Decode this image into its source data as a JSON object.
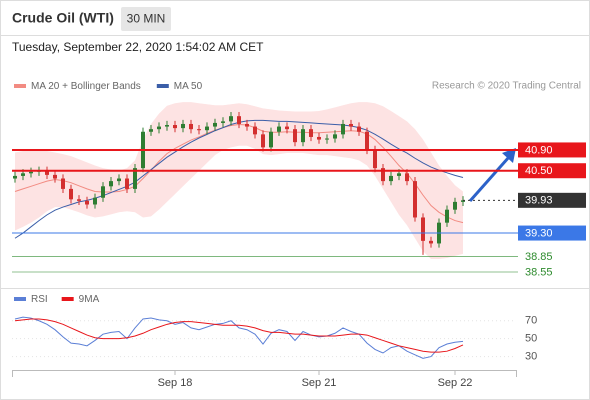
{
  "header": {
    "title": "Crude Oil (WTI)",
    "interval": "30 MIN",
    "timestamp": "Tuesday, September 22, 2020 1:54:02 AM CET"
  },
  "chart_data": [
    {
      "type": "candlestick",
      "credit": "Research © 2020 Trading Central",
      "up_color": "#2e7d32",
      "down_color": "#d32f2f",
      "open": [
        40.35,
        40.4,
        40.45,
        40.48,
        40.5,
        40.42,
        40.35,
        40.15,
        39.95,
        39.92,
        39.85,
        39.98,
        40.2,
        40.3,
        40.35,
        40.15,
        40.55,
        41.25,
        41.3,
        41.35,
        41.38,
        41.32,
        41.4,
        41.3,
        41.28,
        41.35,
        41.42,
        41.45,
        41.55,
        41.4,
        41.35,
        41.2,
        40.95,
        41.25,
        41.35,
        41.3,
        41.05,
        41.3,
        41.15,
        41.1,
        41.12,
        41.2,
        41.4,
        41.35,
        41.25,
        40.9,
        40.55,
        40.3,
        40.4,
        40.45,
        40.3,
        39.6,
        39.15,
        39.1,
        39.5,
        39.75,
        39.9
      ],
      "high": [
        40.48,
        40.53,
        40.56,
        40.58,
        40.58,
        40.5,
        40.43,
        40.23,
        40.03,
        40.0,
        40.06,
        40.28,
        40.38,
        40.43,
        40.43,
        40.63,
        41.33,
        41.38,
        41.43,
        41.46,
        41.46,
        41.48,
        41.48,
        41.38,
        41.43,
        41.5,
        41.53,
        41.63,
        41.63,
        41.48,
        41.43,
        41.28,
        41.33,
        41.43,
        41.43,
        41.38,
        41.38,
        41.38,
        41.23,
        41.2,
        41.28,
        41.48,
        41.48,
        41.43,
        41.33,
        40.98,
        40.63,
        40.48,
        40.53,
        40.53,
        40.38,
        39.68,
        39.23,
        39.58,
        39.83,
        39.98,
        40.01
      ],
      "low": [
        40.27,
        40.32,
        40.37,
        40.4,
        40.34,
        40.27,
        40.07,
        39.87,
        39.84,
        39.77,
        39.77,
        39.9,
        40.12,
        40.22,
        40.07,
        40.07,
        40.47,
        41.17,
        41.22,
        41.27,
        41.24,
        41.24,
        41.22,
        41.2,
        41.2,
        41.27,
        41.34,
        41.37,
        41.32,
        41.27,
        41.12,
        40.87,
        40.87,
        41.17,
        41.22,
        40.97,
        40.97,
        41.07,
        41.02,
        41.02,
        41.04,
        41.12,
        41.27,
        41.17,
        40.82,
        40.47,
        40.22,
        40.22,
        40.32,
        40.22,
        39.52,
        38.88,
        39.02,
        39.02,
        39.42,
        39.67,
        39.82
      ],
      "close": [
        40.4,
        40.45,
        40.48,
        40.5,
        40.42,
        40.35,
        40.15,
        39.95,
        39.92,
        39.85,
        39.98,
        40.2,
        40.3,
        40.35,
        40.15,
        40.55,
        41.25,
        41.3,
        41.35,
        41.38,
        41.32,
        41.4,
        41.3,
        41.28,
        41.35,
        41.42,
        41.45,
        41.55,
        41.4,
        41.35,
        41.2,
        40.95,
        41.25,
        41.35,
        41.3,
        41.05,
        41.3,
        41.15,
        41.1,
        41.12,
        41.2,
        41.4,
        41.35,
        41.25,
        40.9,
        40.55,
        40.3,
        40.4,
        40.45,
        40.3,
        39.6,
        39.15,
        39.1,
        39.5,
        39.75,
        39.9,
        39.93
      ],
      "overlays": [
        {
          "name": "MA 20 + Bollinger Bands",
          "color": "#f28b82",
          "band_color": "#fde3e3",
          "values": [
            40.1,
            40.15,
            40.2,
            40.25,
            40.3,
            40.33,
            40.31,
            40.27,
            40.21,
            40.15,
            40.1,
            40.09,
            40.09,
            40.1,
            40.14,
            40.2,
            40.35,
            40.51,
            40.68,
            40.83,
            40.93,
            41.01,
            41.09,
            41.15,
            41.22,
            41.28,
            41.33,
            41.37,
            41.39,
            41.38,
            41.33,
            41.26,
            41.24,
            41.24,
            41.25,
            41.24,
            41.24,
            41.23,
            41.23,
            41.24,
            41.25,
            41.26,
            41.27,
            41.26,
            41.21,
            41.1,
            40.95,
            40.78,
            40.6,
            40.45,
            40.25,
            40.03,
            39.83,
            39.7,
            39.61,
            39.54,
            39.5
          ],
          "upper": [
            40.85,
            40.88,
            40.9,
            40.9,
            40.88,
            40.85,
            40.82,
            40.78,
            40.72,
            40.66,
            40.6,
            40.55,
            40.52,
            40.5,
            40.55,
            40.7,
            41.1,
            41.4,
            41.6,
            41.75,
            41.8,
            41.82,
            41.82,
            41.8,
            41.78,
            41.76,
            41.76,
            41.78,
            41.8,
            41.78,
            41.74,
            41.7,
            41.68,
            41.66,
            41.65,
            41.64,
            41.64,
            41.64,
            41.65,
            41.68,
            41.72,
            41.76,
            41.8,
            41.82,
            41.82,
            41.8,
            41.74,
            41.65,
            41.55,
            41.45,
            41.3,
            41.1,
            40.85,
            40.6,
            40.4,
            40.22,
            40.1
          ],
          "lower": [
            39.35,
            39.42,
            39.5,
            39.6,
            39.72,
            39.8,
            39.8,
            39.75,
            39.7,
            39.64,
            39.6,
            39.62,
            39.66,
            39.7,
            39.72,
            39.7,
            39.6,
            39.62,
            39.75,
            39.9,
            40.05,
            40.2,
            40.35,
            40.5,
            40.65,
            40.8,
            40.9,
            40.95,
            40.98,
            40.98,
            40.92,
            40.82,
            40.8,
            40.82,
            40.84,
            40.84,
            40.84,
            40.82,
            40.8,
            40.8,
            40.78,
            40.76,
            40.74,
            40.7,
            40.6,
            40.4,
            40.15,
            39.9,
            39.65,
            39.45,
            39.2,
            38.95,
            38.8,
            38.8,
            38.82,
            38.86,
            38.9
          ]
        },
        {
          "name": "MA 50",
          "color": "#3b5ea8",
          "values": [
            39.2,
            39.3,
            39.42,
            39.54,
            39.65,
            39.74,
            39.8,
            39.85,
            39.9,
            39.93,
            39.97,
            40.02,
            40.08,
            40.14,
            40.2,
            40.28,
            40.4,
            40.52,
            40.64,
            40.76,
            40.86,
            40.96,
            41.05,
            41.13,
            41.2,
            41.27,
            41.33,
            41.39,
            41.43,
            41.46,
            41.47,
            41.47,
            41.46,
            41.45,
            41.45,
            41.44,
            41.43,
            41.42,
            41.41,
            41.4,
            41.39,
            41.38,
            41.36,
            41.33,
            41.28,
            41.2,
            41.11,
            41.01,
            40.92,
            40.84,
            40.74,
            40.65,
            40.57,
            40.51,
            40.46,
            40.41,
            40.37
          ]
        }
      ],
      "ylim": [
        38.3,
        41.9
      ],
      "levels": [
        {
          "value": 40.9,
          "label": "40.90",
          "color": "#e8161b",
          "boxed": true
        },
        {
          "value": 40.5,
          "label": "40.50",
          "color": "#e8161b",
          "boxed": true
        },
        {
          "value": 39.93,
          "label": "39.93",
          "color": "#333333",
          "boxed": true,
          "dashed": true
        },
        {
          "value": 39.3,
          "label": "39.30",
          "color": "#3b78e7",
          "boxed": true
        },
        {
          "value": 38.85,
          "label": "38.85",
          "color": "#2e8b2e",
          "boxed": false
        },
        {
          "value": 38.55,
          "label": "38.55",
          "color": "#2e8b2e",
          "boxed": false
        }
      ]
    },
    {
      "type": "line",
      "categories": [
        null,
        null,
        null,
        null,
        null,
        null,
        null,
        null,
        null,
        null,
        null,
        null,
        null,
        null,
        null,
        null,
        null,
        null,
        null,
        null,
        "Sep 18",
        null,
        null,
        null,
        null,
        null,
        null,
        null,
        null,
        null,
        null,
        null,
        null,
        null,
        null,
        null,
        null,
        null,
        "Sep 21",
        null,
        null,
        null,
        null,
        null,
        null,
        null,
        null,
        null,
        null,
        null,
        null,
        null,
        null,
        null,
        null,
        "Sep 22",
        null
      ],
      "series": [
        {
          "name": "RSI",
          "color": "#5b7fd6",
          "values": [
            72,
            74,
            73,
            70,
            66,
            60,
            52,
            45,
            44,
            42,
            48,
            55,
            57,
            58,
            50,
            62,
            72,
            73,
            71,
            70,
            66,
            68,
            62,
            60,
            63,
            66,
            67,
            70,
            62,
            60,
            55,
            44,
            56,
            60,
            58,
            48,
            58,
            54,
            52,
            53,
            56,
            62,
            58,
            55,
            45,
            38,
            34,
            40,
            42,
            36,
            32,
            28,
            30,
            40,
            44,
            46,
            47
          ]
        },
        {
          "name": "9MA",
          "color": "#e8161b",
          "values": [
            70,
            71,
            72,
            72,
            71,
            69,
            66,
            62,
            58,
            54,
            51,
            50,
            50,
            50,
            51,
            53,
            56,
            60,
            63,
            66,
            68,
            69,
            69,
            68,
            67,
            66,
            65,
            65,
            65,
            64,
            62,
            59,
            57,
            57,
            56,
            55,
            55,
            54,
            53,
            53,
            53,
            54,
            55,
            55,
            54,
            51,
            48,
            45,
            42,
            40,
            38,
            36,
            35,
            35,
            36,
            39,
            43
          ]
        }
      ],
      "ylim": [
        15,
        82
      ],
      "yticks": [
        30,
        50,
        70
      ]
    }
  ]
}
